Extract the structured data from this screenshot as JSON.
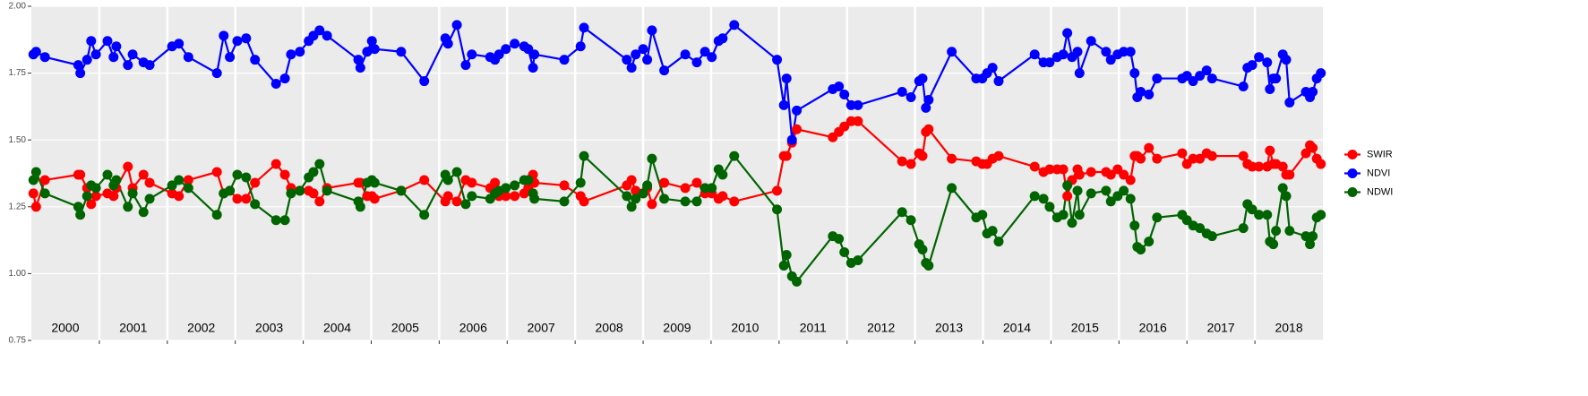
{
  "chart_data": {
    "type": "line",
    "xlim": [
      2000,
      2019
    ],
    "ylim": [
      0.75,
      2.0
    ],
    "yticks": [
      {
        "value": 0.75,
        "label": "0.75"
      },
      {
        "value": 1.0,
        "label": "1.00"
      },
      {
        "value": 1.25,
        "label": "1.25"
      },
      {
        "value": 1.5,
        "label": "1.50"
      },
      {
        "value": 1.75,
        "label": "1.75"
      },
      {
        "value": 2.0,
        "label": "2.00"
      }
    ],
    "xticks": [
      2000,
      2001,
      2002,
      2003,
      2004,
      2005,
      2006,
      2007,
      2008,
      2009,
      2010,
      2011,
      2012,
      2013,
      2014,
      2015,
      2016,
      2017,
      2018
    ],
    "grid": true,
    "legend": "right",
    "x": [
      2000.03,
      2000.07,
      2000.2,
      2000.69,
      2000.72,
      2000.82,
      2000.88,
      2000.95,
      2001.12,
      2001.21,
      2001.25,
      2001.42,
      2001.49,
      2001.65,
      2001.74,
      2002.07,
      2002.17,
      2002.31,
      2002.73,
      2002.83,
      2002.92,
      2003.03,
      2003.16,
      2003.29,
      2003.6,
      2003.73,
      2003.82,
      2003.95,
      2004.08,
      2004.15,
      2004.24,
      2004.35,
      2004.81,
      2004.84,
      2004.94,
      2005.01,
      2005.05,
      2005.44,
      2005.78,
      2006.09,
      2006.13,
      2006.26,
      2006.39,
      2006.48,
      2006.75,
      2006.82,
      2006.88,
      2006.98,
      2007.11,
      2007.25,
      2007.31,
      2007.38,
      2007.4,
      2007.84,
      2008.08,
      2008.13,
      2008.76,
      2008.83,
      2008.89,
      2009.0,
      2009.06,
      2009.13,
      2009.31,
      2009.62,
      2009.79,
      2009.91,
      2010.01,
      2010.11,
      2010.17,
      2010.34,
      2010.97,
      2011.07,
      2011.11,
      2011.19,
      2011.26,
      2011.79,
      2011.88,
      2011.96,
      2012.06,
      2012.16,
      2012.81,
      2012.94,
      2013.06,
      2013.11,
      2013.16,
      2013.2,
      2013.54,
      2013.9,
      2013.99,
      2014.06,
      2014.14,
      2014.23,
      2014.76,
      2014.89,
      2014.98,
      2015.09,
      2015.18,
      2015.24,
      2015.31,
      2015.39,
      2015.42,
      2015.59,
      2015.81,
      2015.88,
      2015.98,
      2016.07,
      2016.17,
      2016.23,
      2016.27,
      2016.32,
      2016.44,
      2016.56,
      2016.93,
      2017.0,
      2017.09,
      2017.19,
      2017.29,
      2017.37,
      2017.83,
      2017.89,
      2017.96,
      2018.06,
      2018.18,
      2018.22,
      2018.27,
      2018.31,
      2018.41,
      2018.46,
      2018.51,
      2018.75,
      2018.81,
      2018.85,
      2018.91,
      2018.97
    ],
    "series": [
      {
        "name": "SWIR",
        "color": "#ff0000",
        "values": [
          1.3,
          1.25,
          1.35,
          1.37,
          1.37,
          1.32,
          1.26,
          1.29,
          1.3,
          1.29,
          1.32,
          1.4,
          1.32,
          1.37,
          1.34,
          1.3,
          1.29,
          1.35,
          1.38,
          1.3,
          1.31,
          1.28,
          1.28,
          1.34,
          1.41,
          1.37,
          1.32,
          1.31,
          1.31,
          1.3,
          1.27,
          1.32,
          1.34,
          1.34,
          1.29,
          1.29,
          1.28,
          1.31,
          1.35,
          1.27,
          1.29,
          1.27,
          1.35,
          1.34,
          1.32,
          1.34,
          1.29,
          1.29,
          1.29,
          1.3,
          1.32,
          1.37,
          1.34,
          1.33,
          1.29,
          1.27,
          1.33,
          1.35,
          1.31,
          1.3,
          1.32,
          1.26,
          1.34,
          1.32,
          1.34,
          1.3,
          1.3,
          1.28,
          1.29,
          1.27,
          1.31,
          1.44,
          1.44,
          1.49,
          1.54,
          1.51,
          1.53,
          1.55,
          1.57,
          1.57,
          1.42,
          1.41,
          1.45,
          1.44,
          1.53,
          1.54,
          1.43,
          1.42,
          1.41,
          1.41,
          1.43,
          1.44,
          1.4,
          1.38,
          1.39,
          1.39,
          1.39,
          1.29,
          1.35,
          1.39,
          1.37,
          1.38,
          1.38,
          1.37,
          1.39,
          1.37,
          1.35,
          1.44,
          1.44,
          1.43,
          1.47,
          1.43,
          1.45,
          1.41,
          1.43,
          1.43,
          1.45,
          1.44,
          1.44,
          1.41,
          1.4,
          1.4,
          1.4,
          1.46,
          1.41,
          1.41,
          1.4,
          1.37,
          1.37,
          1.45,
          1.48,
          1.47,
          1.43,
          1.41
        ]
      },
      {
        "name": "NDVI",
        "color": "#0000ff",
        "values": [
          1.82,
          1.83,
          1.81,
          1.78,
          1.75,
          1.8,
          1.87,
          1.82,
          1.87,
          1.81,
          1.85,
          1.78,
          1.82,
          1.79,
          1.78,
          1.85,
          1.86,
          1.81,
          1.75,
          1.89,
          1.81,
          1.87,
          1.88,
          1.8,
          1.71,
          1.73,
          1.82,
          1.83,
          1.87,
          1.89,
          1.91,
          1.89,
          1.8,
          1.77,
          1.83,
          1.87,
          1.84,
          1.83,
          1.72,
          1.88,
          1.86,
          1.93,
          1.78,
          1.82,
          1.81,
          1.8,
          1.82,
          1.84,
          1.86,
          1.85,
          1.84,
          1.77,
          1.82,
          1.8,
          1.85,
          1.92,
          1.8,
          1.77,
          1.82,
          1.84,
          1.8,
          1.91,
          1.76,
          1.82,
          1.79,
          1.83,
          1.81,
          1.87,
          1.88,
          1.93,
          1.8,
          1.63,
          1.73,
          1.5,
          1.61,
          1.69,
          1.7,
          1.67,
          1.63,
          1.63,
          1.68,
          1.66,
          1.72,
          1.73,
          1.62,
          1.65,
          1.83,
          1.73,
          1.73,
          1.75,
          1.77,
          1.72,
          1.82,
          1.79,
          1.79,
          1.81,
          1.82,
          1.9,
          1.81,
          1.83,
          1.75,
          1.87,
          1.83,
          1.8,
          1.82,
          1.83,
          1.83,
          1.75,
          1.66,
          1.68,
          1.67,
          1.73,
          1.73,
          1.74,
          1.72,
          1.74,
          1.76,
          1.73,
          1.7,
          1.77,
          1.78,
          1.81,
          1.79,
          1.69,
          1.73,
          1.73,
          1.82,
          1.8,
          1.64,
          1.68,
          1.66,
          1.68,
          1.73,
          1.75
        ]
      },
      {
        "name": "NDWI",
        "color": "#006400",
        "values": [
          1.35,
          1.38,
          1.3,
          1.25,
          1.22,
          1.29,
          1.33,
          1.32,
          1.37,
          1.33,
          1.35,
          1.25,
          1.3,
          1.23,
          1.28,
          1.33,
          1.35,
          1.32,
          1.22,
          1.3,
          1.31,
          1.37,
          1.36,
          1.26,
          1.2,
          1.2,
          1.3,
          1.31,
          1.36,
          1.38,
          1.41,
          1.31,
          1.27,
          1.25,
          1.34,
          1.35,
          1.34,
          1.31,
          1.22,
          1.37,
          1.35,
          1.38,
          1.26,
          1.29,
          1.28,
          1.3,
          1.31,
          1.32,
          1.33,
          1.35,
          1.35,
          1.3,
          1.28,
          1.27,
          1.34,
          1.44,
          1.29,
          1.25,
          1.28,
          1.3,
          1.33,
          1.43,
          1.28,
          1.27,
          1.27,
          1.32,
          1.32,
          1.39,
          1.37,
          1.44,
          1.24,
          1.03,
          1.07,
          0.99,
          0.97,
          1.14,
          1.13,
          1.08,
          1.04,
          1.05,
          1.23,
          1.2,
          1.11,
          1.09,
          1.04,
          1.03,
          1.32,
          1.21,
          1.22,
          1.15,
          1.16,
          1.12,
          1.29,
          1.28,
          1.25,
          1.21,
          1.22,
          1.33,
          1.19,
          1.31,
          1.22,
          1.3,
          1.31,
          1.27,
          1.29,
          1.31,
          1.28,
          1.18,
          1.1,
          1.09,
          1.12,
          1.21,
          1.22,
          1.2,
          1.18,
          1.17,
          1.15,
          1.14,
          1.17,
          1.26,
          1.24,
          1.22,
          1.22,
          1.12,
          1.11,
          1.16,
          1.32,
          1.29,
          1.16,
          1.14,
          1.11,
          1.14,
          1.21,
          1.22
        ]
      }
    ]
  }
}
